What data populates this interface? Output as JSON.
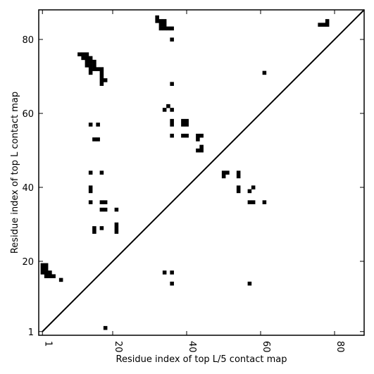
{
  "chart_data": {
    "type": "heatmap",
    "title": "",
    "xlabel": "Residue index of top L/5 contact map",
    "ylabel": "Residue index of top L contact map",
    "xlim": [
      0,
      88
    ],
    "ylim": [
      0,
      88
    ],
    "xticks": [
      1,
      20,
      40,
      60,
      80
    ],
    "yticks": [
      1,
      20,
      40,
      60,
      80
    ],
    "grid": false,
    "colors": {
      "contact": "#000000",
      "background": "#ffffff",
      "frame": "#000000"
    },
    "diagonal_line": {
      "from": [
        1,
        1
      ],
      "to": [
        88,
        88
      ]
    },
    "upper_triangle_contacts": [
      [
        1,
        17
      ],
      [
        1,
        18
      ],
      [
        1,
        19
      ],
      [
        2,
        16
      ],
      [
        2,
        17
      ],
      [
        2,
        18
      ],
      [
        2,
        19
      ],
      [
        3,
        16
      ],
      [
        3,
        17
      ],
      [
        4,
        16
      ],
      [
        6,
        15
      ],
      [
        11,
        76
      ],
      [
        12,
        75
      ],
      [
        12,
        76
      ],
      [
        13,
        73
      ],
      [
        13,
        74
      ],
      [
        13,
        75
      ],
      [
        13,
        76
      ],
      [
        14,
        71
      ],
      [
        14,
        72
      ],
      [
        14,
        73
      ],
      [
        14,
        74
      ],
      [
        14,
        75
      ],
      [
        15,
        72
      ],
      [
        15,
        73
      ],
      [
        15,
        74
      ],
      [
        16,
        72
      ],
      [
        17,
        68
      ],
      [
        17,
        69
      ],
      [
        17,
        70
      ],
      [
        17,
        71
      ],
      [
        17,
        72
      ],
      [
        18,
        69
      ],
      [
        14,
        57
      ],
      [
        16,
        57
      ],
      [
        15,
        53
      ],
      [
        16,
        53
      ],
      [
        14,
        44
      ],
      [
        17,
        44
      ],
      [
        14,
        39
      ],
      [
        14,
        40
      ],
      [
        14,
        36
      ],
      [
        17,
        36
      ],
      [
        18,
        36
      ],
      [
        17,
        34
      ],
      [
        18,
        34
      ],
      [
        21,
        34
      ],
      [
        15,
        28
      ],
      [
        15,
        29
      ],
      [
        17,
        29
      ],
      [
        21,
        28
      ],
      [
        21,
        29
      ],
      [
        21,
        30
      ],
      [
        18,
        2
      ],
      [
        32,
        85
      ],
      [
        32,
        86
      ],
      [
        33,
        83
      ],
      [
        33,
        84
      ],
      [
        33,
        85
      ],
      [
        34,
        83
      ],
      [
        34,
        84
      ],
      [
        34,
        85
      ],
      [
        35,
        83
      ],
      [
        36,
        83
      ],
      [
        36,
        80
      ],
      [
        36,
        68
      ],
      [
        34,
        61
      ],
      [
        35,
        62
      ],
      [
        36,
        61
      ],
      [
        36,
        57
      ],
      [
        36,
        58
      ],
      [
        39,
        57
      ],
      [
        39,
        58
      ],
      [
        40,
        57
      ],
      [
        40,
        58
      ],
      [
        36,
        54
      ],
      [
        39,
        54
      ],
      [
        40,
        54
      ],
      [
        43,
        53
      ],
      [
        43,
        54
      ],
      [
        44,
        54
      ],
      [
        43,
        50
      ],
      [
        44,
        50
      ],
      [
        44,
        51
      ],
      [
        34,
        17
      ],
      [
        36,
        17
      ],
      [
        36,
        14
      ],
      [
        50,
        43
      ],
      [
        50,
        44
      ],
      [
        51,
        44
      ],
      [
        54,
        43
      ],
      [
        54,
        44
      ],
      [
        54,
        39
      ],
      [
        54,
        40
      ],
      [
        57,
        39
      ],
      [
        58,
        40
      ],
      [
        57,
        36
      ],
      [
        58,
        36
      ],
      [
        61,
        36
      ],
      [
        57,
        14
      ],
      [
        61,
        71
      ],
      [
        76,
        84
      ],
      [
        77,
        84
      ],
      [
        78,
        84
      ],
      [
        78,
        85
      ]
    ]
  }
}
